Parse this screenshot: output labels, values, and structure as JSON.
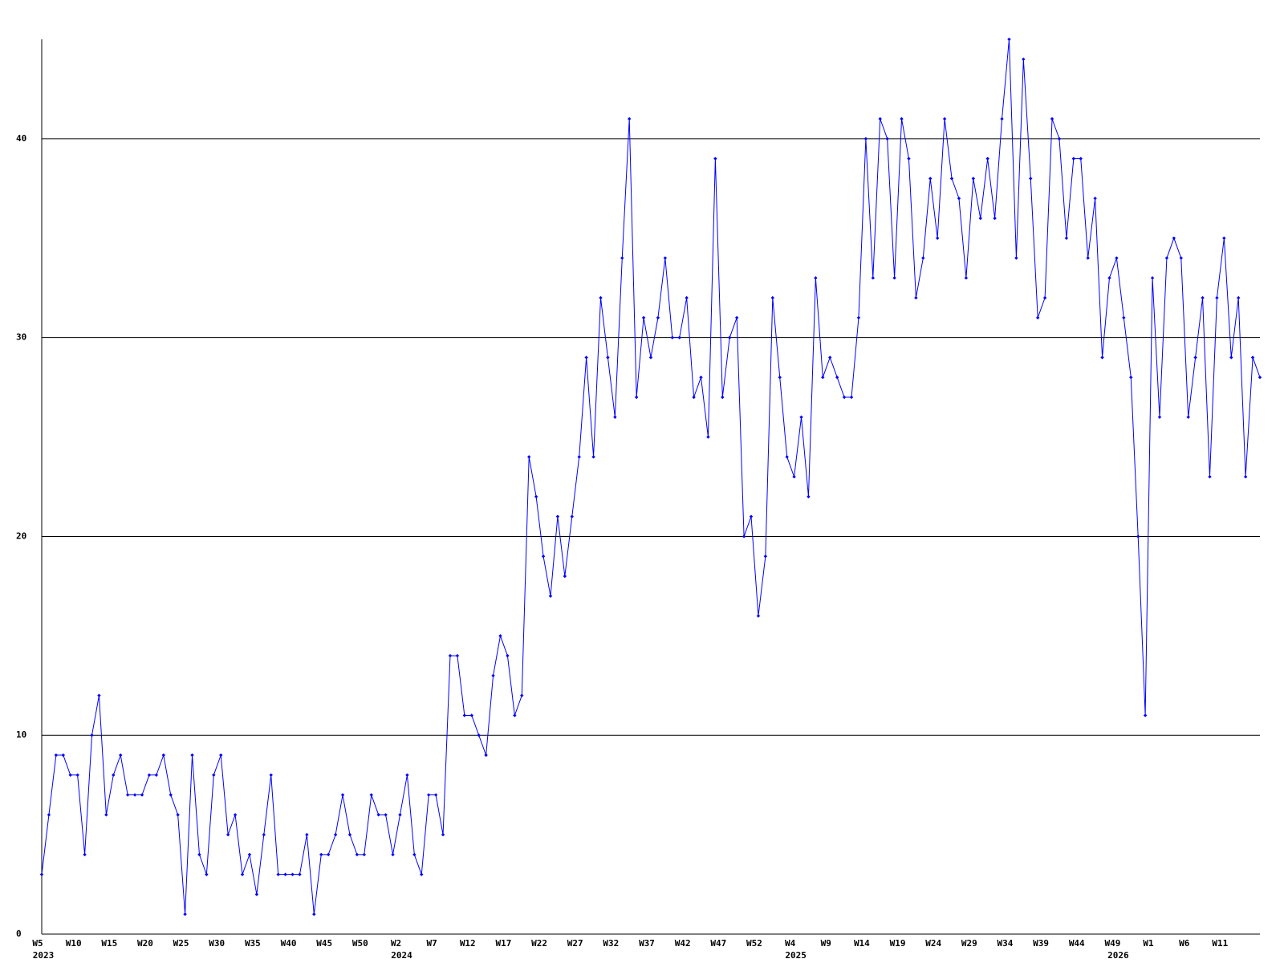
{
  "chart_data": {
    "type": "line",
    "categories": [
      "W5",
      null,
      null,
      null,
      null,
      "W10",
      null,
      null,
      null,
      null,
      "W15",
      null,
      null,
      null,
      null,
      "W20",
      null,
      null,
      null,
      null,
      "W25",
      null,
      null,
      null,
      null,
      "W30",
      null,
      null,
      null,
      null,
      "W35",
      null,
      null,
      null,
      null,
      "W40",
      null,
      null,
      null,
      null,
      "W45",
      null,
      null,
      null,
      null,
      "W50",
      null,
      null,
      null,
      null,
      "W2",
      null,
      null,
      null,
      null,
      "W7",
      null,
      null,
      null,
      null,
      "W12",
      null,
      null,
      null,
      null,
      "W17",
      null,
      null,
      null,
      null,
      "W22",
      null,
      null,
      null,
      null,
      "W27",
      null,
      null,
      null,
      null,
      "W32",
      null,
      null,
      null,
      null,
      "W37",
      null,
      null,
      null,
      null,
      "W42",
      null,
      null,
      null,
      null,
      "W47",
      null,
      null,
      null,
      null,
      "W52",
      null,
      null,
      null,
      null,
      "W4",
      null,
      null,
      null,
      null,
      "W9",
      null,
      null,
      null,
      null,
      "W14",
      null,
      null,
      null,
      null,
      "W19",
      null,
      null,
      null,
      null,
      "W24",
      null,
      null,
      null,
      null,
      "W29",
      null,
      null,
      null,
      null,
      "W34",
      null,
      null,
      null,
      null,
      "W39",
      null,
      null,
      null,
      null,
      "W44",
      null,
      null,
      null,
      null,
      "W49",
      null,
      null,
      null,
      null,
      "W1",
      null,
      null,
      null,
      null,
      "W6",
      null,
      null,
      null,
      null,
      "W11",
      null,
      null,
      null,
      null,
      null
    ],
    "category_years": [
      "2023",
      null,
      null,
      null,
      null,
      null,
      null,
      null,
      null,
      null,
      null,
      null,
      null,
      null,
      null,
      null,
      null,
      null,
      null,
      null,
      null,
      null,
      null,
      null,
      null,
      null,
      null,
      null,
      null,
      null,
      null,
      null,
      null,
      null,
      null,
      null,
      null,
      null,
      null,
      null,
      null,
      null,
      null,
      null,
      null,
      null,
      null,
      null,
      null,
      null,
      "2024",
      null,
      null,
      null,
      null,
      null,
      null,
      null,
      null,
      null,
      null,
      null,
      null,
      null,
      null,
      null,
      null,
      null,
      null,
      null,
      null,
      null,
      null,
      null,
      null,
      null,
      null,
      null,
      null,
      null,
      null,
      null,
      null,
      null,
      null,
      null,
      null,
      null,
      null,
      null,
      null,
      null,
      null,
      null,
      null,
      null,
      null,
      null,
      null,
      null,
      null,
      null,
      null,
      null,
      null,
      "2025",
      null,
      null,
      null,
      null,
      null,
      null,
      null,
      null,
      null,
      null,
      null,
      null,
      null,
      null,
      null,
      null,
      null,
      null,
      null,
      null,
      null,
      null,
      null,
      null,
      null,
      null,
      null,
      null,
      null,
      null,
      null,
      null,
      null,
      null,
      null,
      null,
      null,
      null,
      null,
      null,
      null,
      null,
      null,
      null,
      "2026",
      null,
      null,
      null,
      null,
      null,
      null,
      null,
      null,
      null,
      null,
      null,
      null,
      null,
      null,
      null
    ],
    "series": [
      {
        "color": "#0000ff",
        "values": [
          3,
          6,
          9,
          9,
          8,
          8,
          4,
          10,
          12,
          6,
          8,
          9,
          7,
          7,
          7,
          8,
          8,
          9,
          7,
          6,
          1,
          9,
          4,
          3,
          8,
          9,
          5,
          6,
          3,
          4,
          2,
          5,
          8,
          3,
          3,
          3,
          3,
          5,
          1,
          4,
          4,
          5,
          7,
          5,
          4,
          4,
          7,
          6,
          6,
          4,
          6,
          8,
          4,
          3,
          7,
          7,
          5,
          14,
          14,
          11,
          11,
          10,
          9,
          13,
          15,
          14,
          11,
          12,
          24,
          22,
          19,
          17,
          21,
          18,
          21,
          24,
          29,
          24,
          32,
          29,
          26,
          34,
          41,
          27,
          31,
          29,
          31,
          34,
          30,
          30,
          32,
          27,
          28,
          25,
          39,
          27,
          30,
          31,
          20,
          21,
          16,
          19,
          32,
          28,
          24,
          23,
          26,
          22,
          33,
          28,
          29,
          28,
          27,
          27,
          31,
          40,
          33,
          41,
          40,
          33,
          41,
          39,
          32,
          34,
          38,
          35,
          41,
          38,
          37,
          33,
          38,
          36,
          39,
          36,
          41,
          45,
          34,
          44,
          38,
          31,
          32,
          41,
          40,
          35,
          39,
          39,
          34,
          37,
          29,
          33,
          34,
          31,
          28,
          20,
          11,
          33,
          26,
          34,
          35,
          34,
          26,
          29,
          32,
          23,
          32,
          35,
          29,
          32,
          23,
          29,
          28
        ]
      }
    ],
    "ylim": [
      0,
      45
    ],
    "yticks": [
      0,
      10,
      20,
      30,
      40
    ],
    "grid": true
  }
}
